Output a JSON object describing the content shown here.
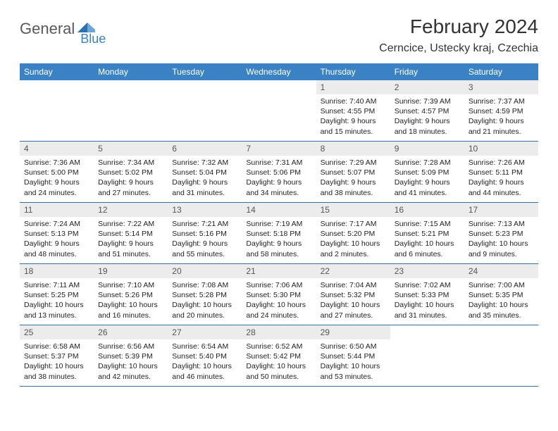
{
  "logo": {
    "general": "General",
    "blue": "Blue"
  },
  "title": "February 2024",
  "location": "Cerncice, Ustecky kraj, Czechia",
  "colors": {
    "header_bg": "#3b82c4",
    "header_text": "#ffffff",
    "daynum_bg": "#ececec",
    "daynum_text": "#555555",
    "body_text": "#222222",
    "rule": "#3b6ea0"
  },
  "weekdays": [
    "Sunday",
    "Monday",
    "Tuesday",
    "Wednesday",
    "Thursday",
    "Friday",
    "Saturday"
  ],
  "weeks": [
    [
      {
        "blank": true
      },
      {
        "blank": true
      },
      {
        "blank": true
      },
      {
        "blank": true
      },
      {
        "d": "1",
        "sr": "7:40 AM",
        "ss": "4:55 PM",
        "dl": "9 hours and 15 minutes."
      },
      {
        "d": "2",
        "sr": "7:39 AM",
        "ss": "4:57 PM",
        "dl": "9 hours and 18 minutes."
      },
      {
        "d": "3",
        "sr": "7:37 AM",
        "ss": "4:59 PM",
        "dl": "9 hours and 21 minutes."
      }
    ],
    [
      {
        "d": "4",
        "sr": "7:36 AM",
        "ss": "5:00 PM",
        "dl": "9 hours and 24 minutes."
      },
      {
        "d": "5",
        "sr": "7:34 AM",
        "ss": "5:02 PM",
        "dl": "9 hours and 27 minutes."
      },
      {
        "d": "6",
        "sr": "7:32 AM",
        "ss": "5:04 PM",
        "dl": "9 hours and 31 minutes."
      },
      {
        "d": "7",
        "sr": "7:31 AM",
        "ss": "5:06 PM",
        "dl": "9 hours and 34 minutes."
      },
      {
        "d": "8",
        "sr": "7:29 AM",
        "ss": "5:07 PM",
        "dl": "9 hours and 38 minutes."
      },
      {
        "d": "9",
        "sr": "7:28 AM",
        "ss": "5:09 PM",
        "dl": "9 hours and 41 minutes."
      },
      {
        "d": "10",
        "sr": "7:26 AM",
        "ss": "5:11 PM",
        "dl": "9 hours and 44 minutes."
      }
    ],
    [
      {
        "d": "11",
        "sr": "7:24 AM",
        "ss": "5:13 PM",
        "dl": "9 hours and 48 minutes."
      },
      {
        "d": "12",
        "sr": "7:22 AM",
        "ss": "5:14 PM",
        "dl": "9 hours and 51 minutes."
      },
      {
        "d": "13",
        "sr": "7:21 AM",
        "ss": "5:16 PM",
        "dl": "9 hours and 55 minutes."
      },
      {
        "d": "14",
        "sr": "7:19 AM",
        "ss": "5:18 PM",
        "dl": "9 hours and 58 minutes."
      },
      {
        "d": "15",
        "sr": "7:17 AM",
        "ss": "5:20 PM",
        "dl": "10 hours and 2 minutes."
      },
      {
        "d": "16",
        "sr": "7:15 AM",
        "ss": "5:21 PM",
        "dl": "10 hours and 6 minutes."
      },
      {
        "d": "17",
        "sr": "7:13 AM",
        "ss": "5:23 PM",
        "dl": "10 hours and 9 minutes."
      }
    ],
    [
      {
        "d": "18",
        "sr": "7:11 AM",
        "ss": "5:25 PM",
        "dl": "10 hours and 13 minutes."
      },
      {
        "d": "19",
        "sr": "7:10 AM",
        "ss": "5:26 PM",
        "dl": "10 hours and 16 minutes."
      },
      {
        "d": "20",
        "sr": "7:08 AM",
        "ss": "5:28 PM",
        "dl": "10 hours and 20 minutes."
      },
      {
        "d": "21",
        "sr": "7:06 AM",
        "ss": "5:30 PM",
        "dl": "10 hours and 24 minutes."
      },
      {
        "d": "22",
        "sr": "7:04 AM",
        "ss": "5:32 PM",
        "dl": "10 hours and 27 minutes."
      },
      {
        "d": "23",
        "sr": "7:02 AM",
        "ss": "5:33 PM",
        "dl": "10 hours and 31 minutes."
      },
      {
        "d": "24",
        "sr": "7:00 AM",
        "ss": "5:35 PM",
        "dl": "10 hours and 35 minutes."
      }
    ],
    [
      {
        "d": "25",
        "sr": "6:58 AM",
        "ss": "5:37 PM",
        "dl": "10 hours and 38 minutes."
      },
      {
        "d": "26",
        "sr": "6:56 AM",
        "ss": "5:39 PM",
        "dl": "10 hours and 42 minutes."
      },
      {
        "d": "27",
        "sr": "6:54 AM",
        "ss": "5:40 PM",
        "dl": "10 hours and 46 minutes."
      },
      {
        "d": "28",
        "sr": "6:52 AM",
        "ss": "5:42 PM",
        "dl": "10 hours and 50 minutes."
      },
      {
        "d": "29",
        "sr": "6:50 AM",
        "ss": "5:44 PM",
        "dl": "10 hours and 53 minutes."
      },
      {
        "blank": true
      },
      {
        "blank": true
      }
    ]
  ],
  "labels": {
    "sunrise": "Sunrise:",
    "sunset": "Sunset:",
    "daylight": "Daylight:"
  }
}
